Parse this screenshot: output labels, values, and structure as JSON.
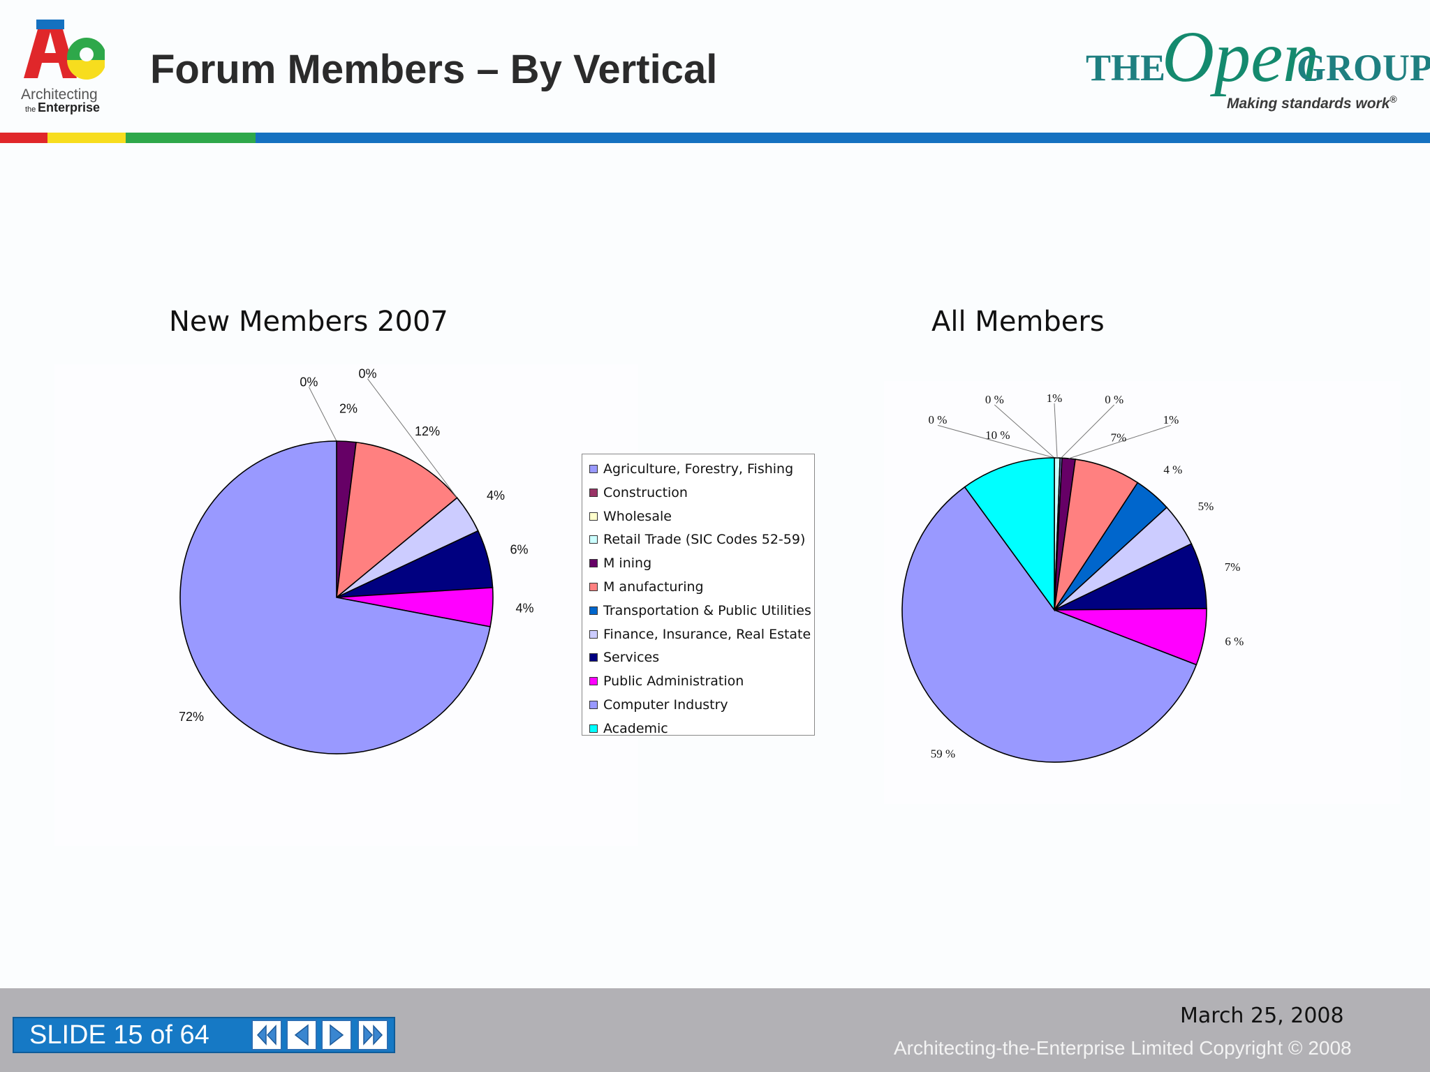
{
  "header": {
    "title": "Forum Members – By Vertical",
    "ae_logo": {
      "line1": "Architecting",
      "line2_small": "the",
      "line2": "Enterprise"
    },
    "og_logo": {
      "the": "THE",
      "open": "Open",
      "group": "GROUP",
      "tagline": "Making standards work",
      "reg": "®"
    }
  },
  "colors": {
    "accent_bar": [
      "#e0272a",
      "#f7dd1e",
      "#2ea84a",
      "#1571c0"
    ],
    "footer_bg": "#b2b1b5",
    "counter_bg": "#1679c5"
  },
  "legend": {
    "items": [
      {
        "label": "Agriculture, Forestry, Fishing",
        "color": "#9999ff"
      },
      {
        "label": "Construction",
        "color": "#993366"
      },
      {
        "label": "Wholesale",
        "color": "#ffffcc"
      },
      {
        "label": "Retail Trade (SIC Codes 52-59)",
        "color": "#ccffff"
      },
      {
        "label": "M ining",
        "color": "#660066"
      },
      {
        "label": "M anufacturing",
        "color": "#ff8080"
      },
      {
        "label": "Transportation & Public Utilities",
        "color": "#0066cc"
      },
      {
        "label": "Finance, Insurance, Real Estate",
        "color": "#ccccff"
      },
      {
        "label": "Services",
        "color": "#000080"
      },
      {
        "label": "Public Administration",
        "color": "#ff00ff"
      },
      {
        "label": "Computer Industry",
        "color": "#9999ff"
      },
      {
        "label": "Academic",
        "color": "#00ffff"
      }
    ]
  },
  "chart_data": [
    {
      "type": "pie",
      "title": "New Members 2007",
      "slices": [
        {
          "category": "Wholesale",
          "value": 0,
          "label": "0%",
          "color": "#ffffcc"
        },
        {
          "category": "M ining",
          "value": 2,
          "label": "2%",
          "color": "#660066"
        },
        {
          "category": "M anufacturing",
          "value": 12,
          "label": "12%",
          "color": "#ff8080"
        },
        {
          "category": "Transportation & Public Utilities",
          "value": 0,
          "label": "0%",
          "color": "#0066cc"
        },
        {
          "category": "Finance, Insurance, Real Estate",
          "value": 4,
          "label": "4%",
          "color": "#ccccff"
        },
        {
          "category": "Services",
          "value": 6,
          "label": "6%",
          "color": "#000080"
        },
        {
          "category": "Public Administration",
          "value": 4,
          "label": "4%",
          "color": "#ff00ff"
        },
        {
          "category": "Computer Industry",
          "value": 72,
          "label": "72%",
          "color": "#9999ff"
        }
      ]
    },
    {
      "type": "pie",
      "title": "All Members",
      "slices": [
        {
          "category": "Construction",
          "value": 0,
          "label": "0 %",
          "color": "#993366"
        },
        {
          "category": "Wholesale",
          "value": 0,
          "label": "0 %",
          "color": "#ffffcc"
        },
        {
          "category": "Retail Trade (SIC Codes 52-59)",
          "value": 0.6,
          "label": "1%",
          "color": "#ccffff"
        },
        {
          "category": "Agriculture, Forestry, Fishing",
          "value": 0.2,
          "label": "0 %",
          "color": "#9999ff"
        },
        {
          "category": "M ining",
          "value": 1.4,
          "label": "1%",
          "color": "#660066"
        },
        {
          "category": "M anufacturing",
          "value": 7,
          "label": "7%",
          "color": "#ff8080"
        },
        {
          "category": "Transportation & Public Utilities",
          "value": 4,
          "label": "4 %",
          "color": "#0066cc"
        },
        {
          "category": "Finance, Insurance, Real Estate",
          "value": 4.6,
          "label": "5%",
          "color": "#ccccff"
        },
        {
          "category": "Services",
          "value": 7,
          "label": "7%",
          "color": "#000080"
        },
        {
          "category": "Public Administration",
          "value": 6,
          "label": "6 %",
          "color": "#ff00ff"
        },
        {
          "category": "Computer Industry",
          "value": 59,
          "label": "59 %",
          "color": "#9999ff"
        },
        {
          "category": "Academic",
          "value": 10,
          "label": "10 %",
          "color": "#00ffff"
        }
      ]
    }
  ],
  "footer": {
    "slide_counter": "SLIDE 15 of 64",
    "nav": [
      "first-slide",
      "previous-slide",
      "next-slide",
      "last-slide"
    ],
    "date": "March 25, 2008",
    "copyright": "Architecting-the-Enterprise Limited Copyright © 2008"
  }
}
